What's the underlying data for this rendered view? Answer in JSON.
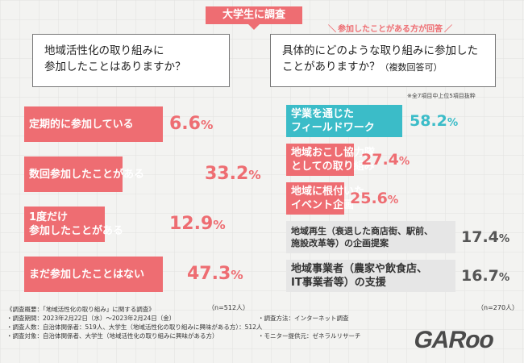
{
  "badge": "大学生に調査",
  "note_right": "参加したことがある方が回答",
  "left_question": [
    "地域活性化の取り組みに",
    "参加したことはありますか？"
  ],
  "right_question": [
    "具体的にどのような取り組みに参加した",
    "ことがありますか？"
  ],
  "right_question_sub": "（複数回答可）",
  "right_subnote": "※全7項目中上位5項目抜粋",
  "chart_data": [
    {
      "type": "bar",
      "orientation": "horizontal",
      "categories": [
        [
          "定期的に参加している"
        ],
        [
          "数回参加したことがある"
        ],
        [
          "1度だけ",
          "参加したことがある"
        ],
        [
          "まだ参加したことはない"
        ]
      ],
      "values": [
        6.6,
        33.2,
        12.9,
        47.3
      ],
      "value_labels": [
        "6.6%",
        "33.2%",
        "12.9%",
        "47.3%"
      ],
      "n_note": "（n=512人）",
      "colors": {
        "bar": "#ee6d72",
        "value": "#ee6d72"
      },
      "xlim": [
        0,
        47.3
      ]
    },
    {
      "type": "bar",
      "orientation": "horizontal",
      "categories": [
        [
          "学業を通じた",
          "フィールドワーク"
        ],
        [
          "地域おこし協力隊",
          "としての取り組み"
        ],
        [
          "地域に根付いた",
          "イベント企画"
        ],
        [
          "地域再生（衰退した商店街、駅前、",
          "施設改革等）の企画提案"
        ],
        [
          "地域事業者（農家や飲食店、",
          "IT事業者等）の支援"
        ]
      ],
      "values": [
        58.2,
        27.4,
        25.6,
        17.4,
        16.7
      ],
      "value_labels": [
        "58.2%",
        "27.4%",
        "25.6%",
        "17.4%",
        "16.7%"
      ],
      "n_note": "（n=270人）",
      "colors": {
        "bar": [
          "#3bbcc8",
          "#ee6d72",
          "#ee6d72",
          "#e6e6e6",
          "#e6e6e6"
        ],
        "value": [
          "#3bbcc8",
          "#ee6d72",
          "#ee6d72",
          "#555555",
          "#555555"
        ],
        "label": [
          "#ffffff",
          "#ffffff",
          "#ffffff",
          "#333333",
          "#333333"
        ]
      },
      "xlim": [
        0,
        58.2
      ]
    }
  ],
  "survey_info": {
    "title": "《調査概要：「地域活性化の取り組み」に関する調査》",
    "lines_left": [
      "・調査期間：2023年2月22日（水）〜2023年2月24日（金）",
      "・調査人数：自治体関係者：519人、大学生（地域活性化の取り組みに興味がある方）：512人",
      "・調査対象：自治体関係者、大学生（地域活性化の取り組みに興味がある方）"
    ],
    "lines_right": [
      "・調査方法：インターネット調査",
      "",
      "・モニター提供元：ゼネラルリサーチ"
    ]
  },
  "logo_text": "GARoo"
}
